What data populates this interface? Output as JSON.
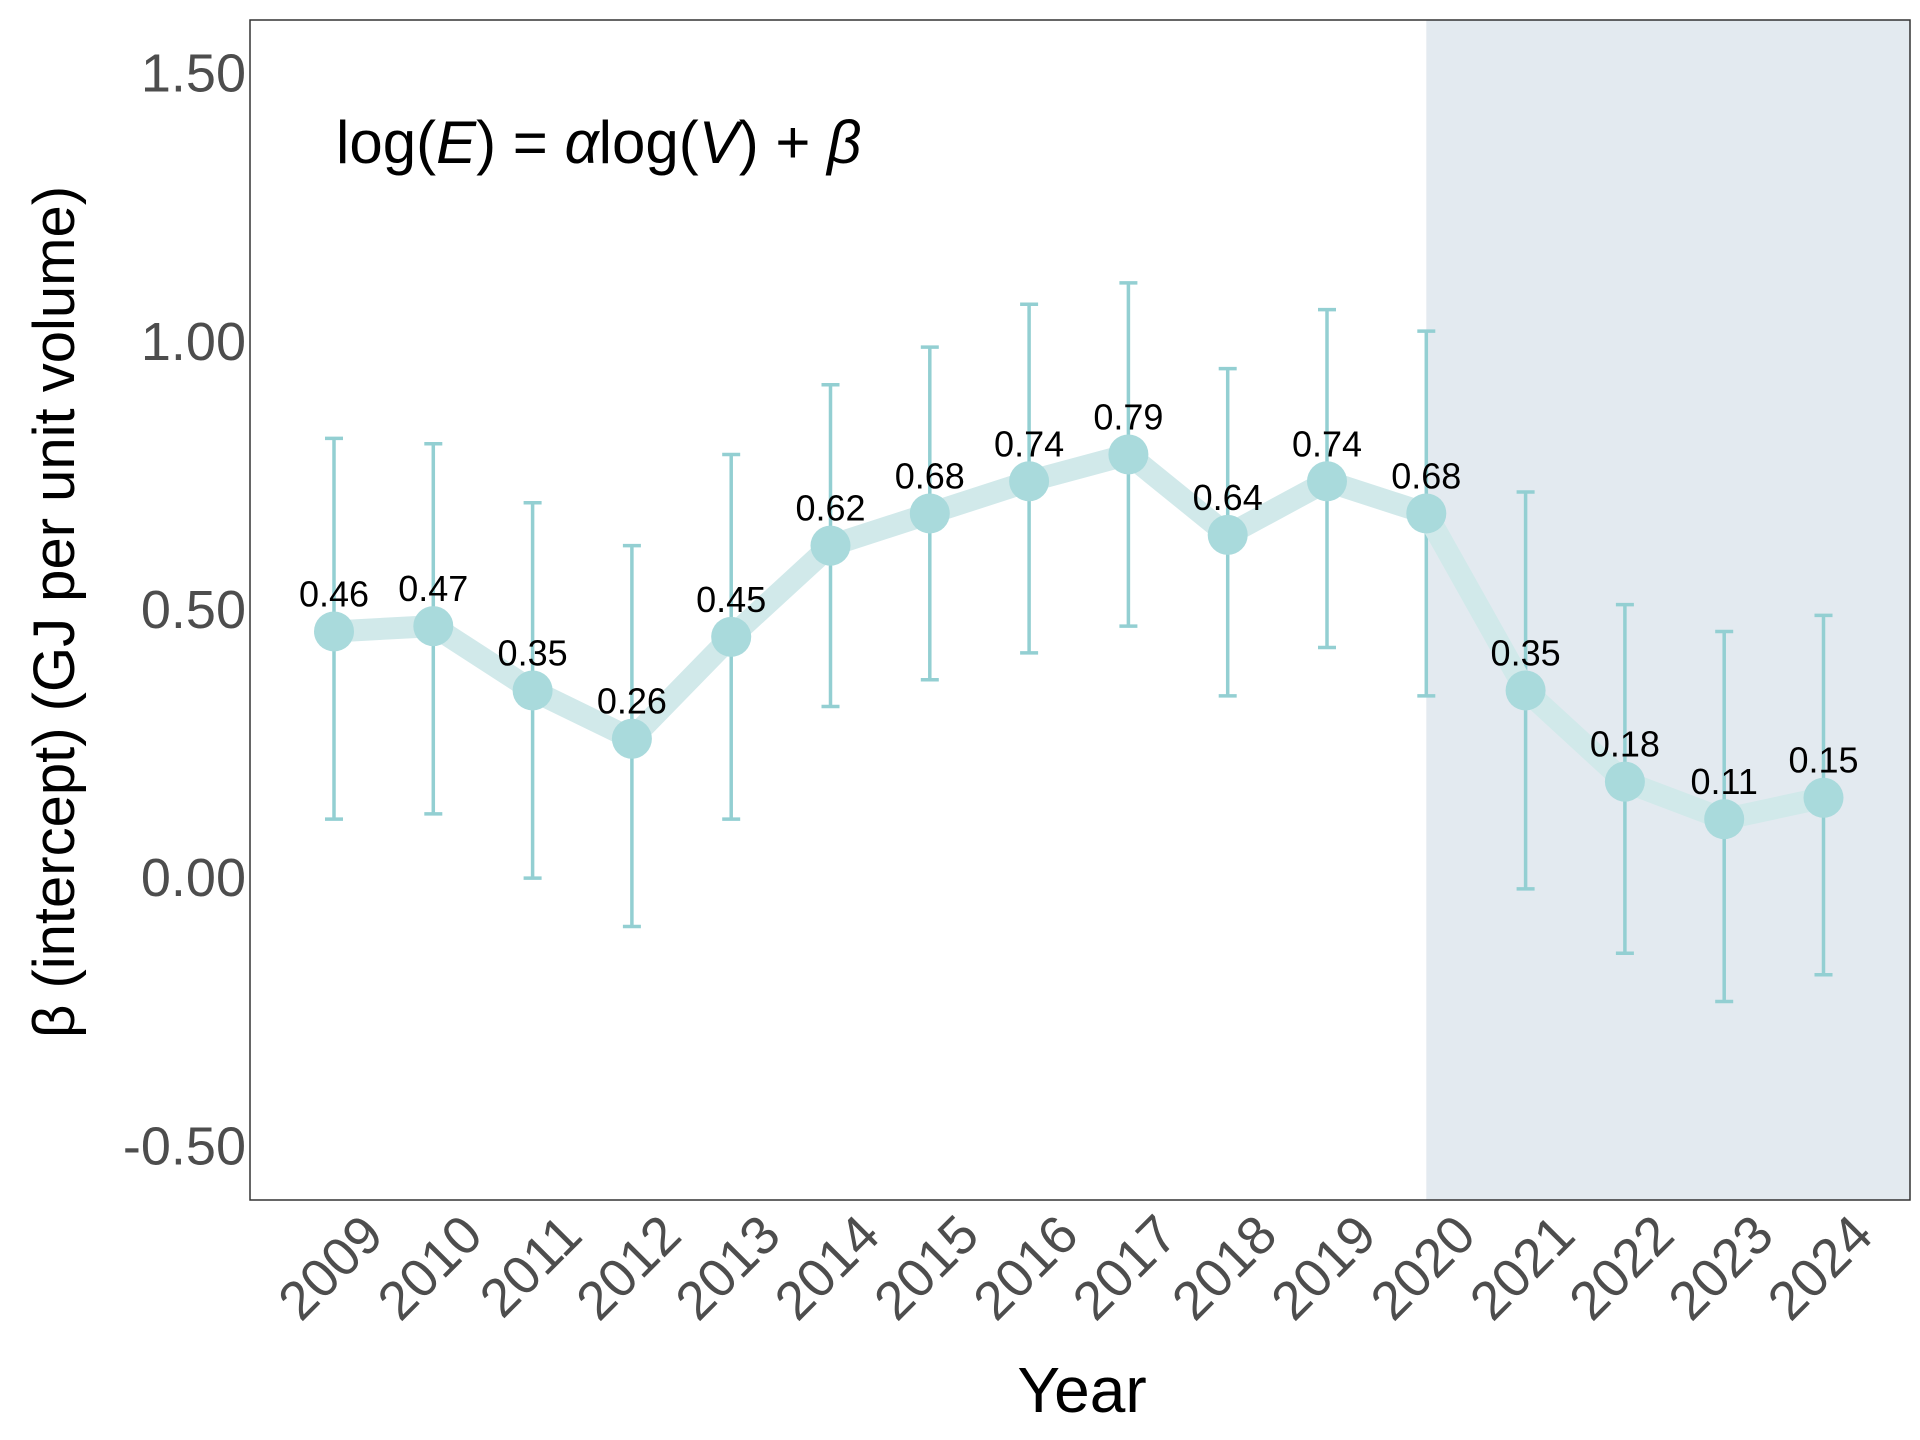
{
  "chart_data": {
    "type": "line",
    "title": "",
    "formula": {
      "prefix": "log(",
      "E": "E",
      "mid1": ") = ",
      "alpha": "α",
      "mid2": "log(",
      "V": "V",
      "mid3": ") + ",
      "beta": "β"
    },
    "xlabel": "Year",
    "ylabel": "β (intercept) (GJ per unit volume)",
    "ylim": [
      -0.6,
      1.6
    ],
    "yticks": [
      -0.5,
      0.0,
      0.5,
      1.0,
      1.5
    ],
    "ytick_labels": [
      "-0.50",
      "0.00",
      "0.50",
      "1.00",
      "1.50"
    ],
    "categories": [
      "2009",
      "2010",
      "2011",
      "2012",
      "2013",
      "2014",
      "2015",
      "2016",
      "2017",
      "2018",
      "2019",
      "2020",
      "2021",
      "2022",
      "2023",
      "2024"
    ],
    "values": [
      0.46,
      0.47,
      0.35,
      0.26,
      0.45,
      0.62,
      0.68,
      0.74,
      0.79,
      0.64,
      0.74,
      0.68,
      0.35,
      0.18,
      0.11,
      0.15
    ],
    "value_labels": [
      "0.46",
      "0.47",
      "0.35",
      "0.26",
      "0.45",
      "0.62",
      "0.68",
      "0.74",
      "0.79",
      "0.64",
      "0.74",
      "0.68",
      "0.35",
      "0.18",
      "0.11",
      "0.15"
    ],
    "err_low": [
      0.11,
      0.12,
      0.0,
      -0.09,
      0.11,
      0.32,
      0.37,
      0.42,
      0.47,
      0.34,
      0.43,
      0.34,
      -0.02,
      -0.14,
      -0.23,
      -0.18
    ],
    "err_high": [
      0.82,
      0.81,
      0.7,
      0.62,
      0.79,
      0.92,
      0.99,
      1.07,
      1.11,
      0.95,
      1.06,
      1.02,
      0.72,
      0.51,
      0.46,
      0.49
    ],
    "shaded_region_start": "2020",
    "grid": false,
    "legend": "none",
    "colors": {
      "line": "#d1e9ea",
      "point": "#a9dadc",
      "errorbar": "#93cfd2",
      "shade": "#e3eaf0",
      "panel_border": "#333333"
    }
  }
}
